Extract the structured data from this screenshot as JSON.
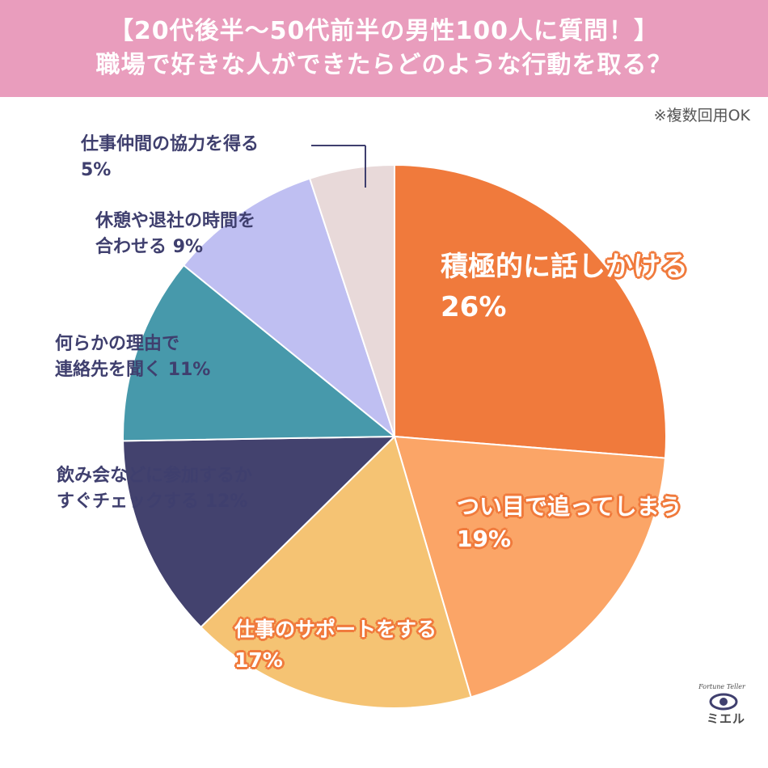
{
  "header": {
    "title_line1": "【20代後半〜50代前半の男性100人に質問！】",
    "title_line2": "職場で好きな人ができたらどのような行動を取る？"
  },
  "note": "※複数回用OK",
  "logo": {
    "text": "ミエル",
    "arc_text": "Fortune Teller"
  },
  "chart_data": {
    "type": "pie",
    "title": "職場で好きな人ができたらどのような行動を取る？",
    "slices": [
      {
        "label_lines": [
          "積極的に話しかける"
        ],
        "value_text": "26%",
        "value": 26,
        "color": "#f07a3c"
      },
      {
        "label_lines": [
          "つい目で追ってしまう"
        ],
        "value_text": "19%",
        "value": 19,
        "color": "#fba567"
      },
      {
        "label_lines": [
          "仕事のサポートをする"
        ],
        "value_text": "17%",
        "value": 17,
        "color": "#f5c373"
      },
      {
        "label_lines": [
          "飲み会などに参加するか",
          "すぐチェックする"
        ],
        "value_text": "12%",
        "value": 12,
        "color": "#43426e"
      },
      {
        "label_lines": [
          "何らかの理由で",
          "連絡先を聞く"
        ],
        "value_text": "11%",
        "value": 11,
        "color": "#4799ab"
      },
      {
        "label_lines": [
          "休憩や退社の時間を",
          "合わせる"
        ],
        "value_text": "9%",
        "value": 9,
        "color": "#bfbff2"
      },
      {
        "label_lines": [
          "仕事仲間の協力を得る"
        ],
        "value_text": "5%",
        "value": 5,
        "color": "#e8d9d9"
      }
    ]
  }
}
